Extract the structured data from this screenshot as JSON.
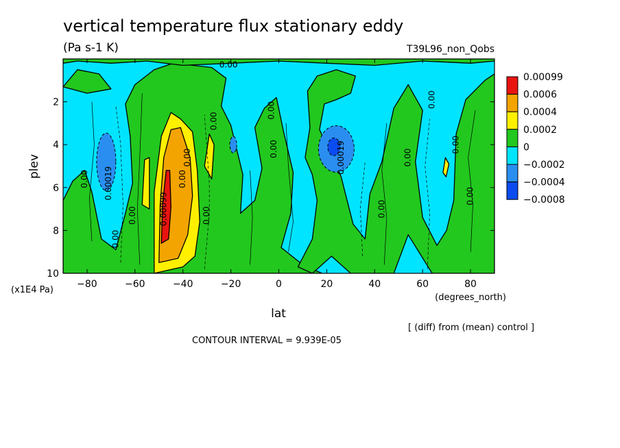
{
  "chart_data": {
    "type": "heatmap",
    "title": "vertical temperature flux stationary eddy",
    "units": "(Pa s-1 K)",
    "run_label": "T39L96_non_Qobs",
    "xlabel": "lat",
    "x_units": "(degrees_north)",
    "ylabel": "plev",
    "y_units": "(x1E4 Pa)",
    "xlim": [
      -90,
      90
    ],
    "ylim": [
      10,
      0
    ],
    "x_ticks": [
      -80,
      -60,
      -40,
      -20,
      0,
      20,
      40,
      60,
      80
    ],
    "x_tick_labels": [
      "−80",
      "−60",
      "−40",
      "−20",
      "0",
      "20",
      "40",
      "60",
      "80"
    ],
    "y_ticks": [
      2,
      4,
      6,
      8,
      10
    ],
    "y_tick_labels": [
      "2",
      "4",
      "6",
      "8",
      "10"
    ],
    "contour_interval_text": "CONTOUR INTERVAL = 9.939E-05",
    "footnote": "[ (diff) from (mean) control ]",
    "colorbar": {
      "levels": [
        "−0.0008",
        "−0.0004",
        "−0.0002",
        "0",
        "0.0002",
        "0.0004",
        "0.0006",
        "0.00099"
      ],
      "colors": [
        "#0b4cf0",
        "#2a8ef0",
        "#00e4ff",
        "#22c81e",
        "#fff000",
        "#f3a400",
        "#e81410"
      ]
    },
    "features": [
      {
        "lat": -72,
        "plev": 4.8,
        "value": -0.00019
      },
      {
        "lat": -47,
        "plev": 6.0,
        "value": 0.00099
      },
      {
        "lat": -40,
        "plev": 5.0,
        "value": 0.0005
      },
      {
        "lat": -29,
        "plev": 4.4,
        "value": 0.0002
      },
      {
        "lat": 23,
        "plev": 4.2,
        "value": -0.0005
      },
      {
        "lat": 70,
        "plev": 5.0,
        "value": 0.0002
      }
    ],
    "contour_labels": [
      {
        "text": "0.00",
        "lat": -21,
        "plev": 0.4
      },
      {
        "text": "0.00",
        "lat": -80,
        "plev": 5.6
      },
      {
        "text": "0.00019",
        "lat": -70,
        "plev": 5.8
      },
      {
        "text": "0.00",
        "lat": -60,
        "plev": 7.3
      },
      {
        "text": "0.00",
        "lat": -67,
        "plev": 8.4
      },
      {
        "text": "0.00",
        "lat": -37,
        "plev": 4.6
      },
      {
        "text": "0.00",
        "lat": -39,
        "plev": 5.6
      },
      {
        "text": "0.00099",
        "lat": -47,
        "plev": 7.0
      },
      {
        "text": "0.00",
        "lat": -26,
        "plev": 2.9
      },
      {
        "text": "0.00",
        "lat": -29,
        "plev": 7.3
      },
      {
        "text": "0.00",
        "lat": -2,
        "plev": 2.4
      },
      {
        "text": "0.00",
        "lat": -1,
        "plev": 4.2
      },
      {
        "text": "0.00019",
        "lat": 27,
        "plev": 4.6
      },
      {
        "text": "0.00",
        "lat": 44,
        "plev": 7.0
      },
      {
        "text": "0.00",
        "lat": 55,
        "plev": 4.6
      },
      {
        "text": "0.00",
        "lat": 65,
        "plev": 1.9
      },
      {
        "text": "0.00",
        "lat": 75,
        "plev": 4.0
      },
      {
        "text": "0.00",
        "lat": 81,
        "plev": 6.4
      }
    ]
  }
}
